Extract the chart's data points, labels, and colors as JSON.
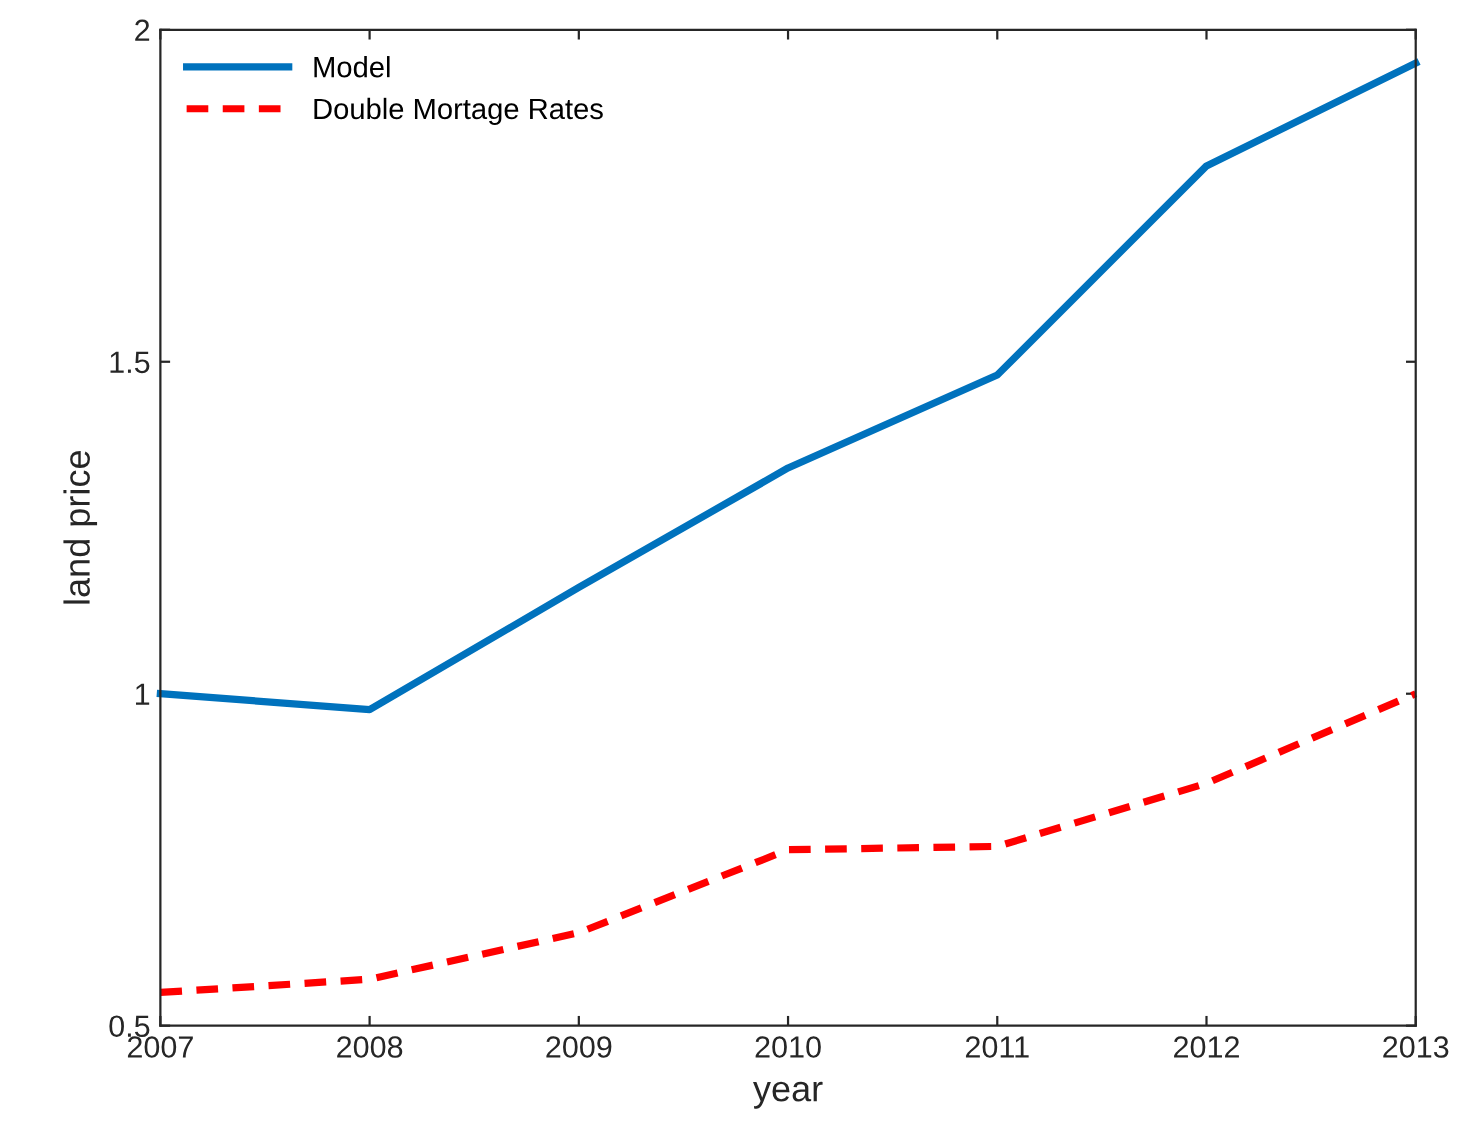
{
  "chart_data": {
    "type": "line",
    "xlabel": "year",
    "ylabel": "land price",
    "x": [
      2007,
      2008,
      2009,
      2010,
      2011,
      2012,
      2013
    ],
    "series": [
      {
        "name": "Model",
        "color": "#0072bd",
        "line_style": "solid",
        "values": [
          1.0,
          0.976,
          1.16,
          1.34,
          1.48,
          1.795,
          1.95
        ]
      },
      {
        "name": "Double Mortage Rates",
        "color": "#ff0000",
        "line_style": "dashed",
        "values": [
          0.55,
          0.57,
          0.64,
          0.765,
          0.77,
          0.865,
          1.0
        ]
      }
    ],
    "xlim": [
      2007,
      2013
    ],
    "xticks": [
      2007,
      2008,
      2009,
      2010,
      2011,
      2012,
      2013
    ],
    "ylim": [
      0.5,
      2
    ],
    "yticks": [
      0.5,
      1,
      1.5,
      2
    ],
    "grid": false,
    "legend": "top left",
    "marker": "none"
  }
}
